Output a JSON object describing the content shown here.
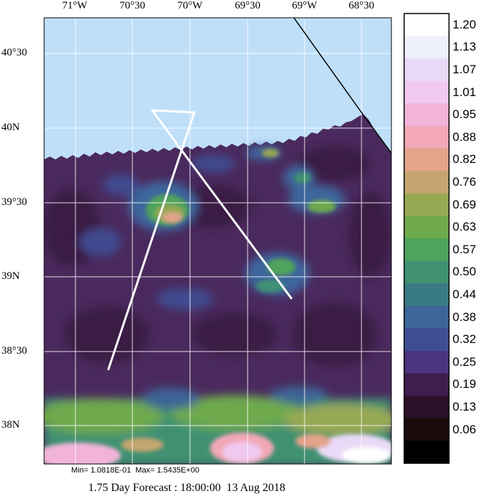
{
  "map": {
    "lon_labels": [
      "71°W",
      "70°30",
      "70°W",
      "69°30",
      "69°W",
      "68°30"
    ],
    "lat_labels": [
      "40°30",
      "40N",
      "39°30",
      "39N",
      "38°30",
      "38N"
    ],
    "colors": {
      "sea_no_data": "#bfdff9",
      "background_field": "#4a2a5e",
      "track": "#ffffff",
      "grid": "#ffffff",
      "front_line": "#000000"
    }
  },
  "colorbar": {
    "levels": [
      "1.20",
      "1.13",
      "1.07",
      "1.01",
      "0.95",
      "0.88",
      "0.82",
      "0.76",
      "0.69",
      "0.63",
      "0.57",
      "0.50",
      "0.44",
      "0.38",
      "0.32",
      "0.25",
      "0.19",
      "0.13",
      "0.06"
    ],
    "colors": [
      "#ffffff",
      "#eef0fc",
      "#e9d9f6",
      "#f1c8ef",
      "#f2b3d8",
      "#f2a8b6",
      "#e4a38a",
      "#c4a56f",
      "#98a954",
      "#6ea94d",
      "#4fa35c",
      "#3f9172",
      "#3a7a85",
      "#3d6595",
      "#3f4e93",
      "#4b3580",
      "#3f1e4d",
      "#2b1228",
      "#1b0a0a"
    ],
    "bottom_color": "#000000"
  },
  "stats": {
    "minmax": "Min= 1.0818E-01  Max= 1.5435E+00"
  },
  "caption": {
    "forecast": "1.75 Day Forecast : 18:00:00  13 Aug 2018"
  }
}
